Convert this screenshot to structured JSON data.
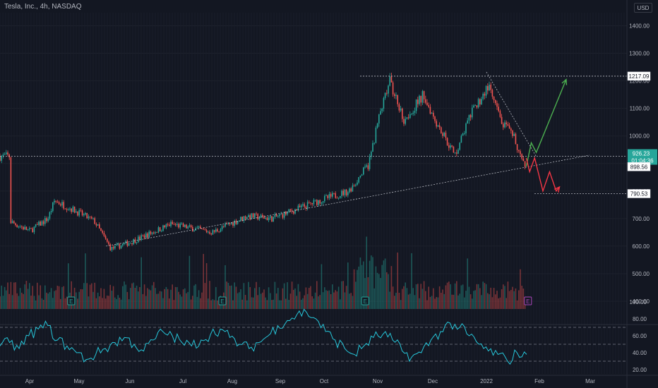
{
  "header": {
    "title": "Tesla, Inc., 4h, NASDAQ",
    "currency": "USD"
  },
  "colors": {
    "background": "#131722",
    "up": "#26a69a",
    "down": "#ef5350",
    "rsi": "#26c6da",
    "projection_up": "#4caf50",
    "projection_down": "#f23645",
    "guide": "#d1d4dc"
  },
  "chart_data": [
    {
      "type": "candlestick",
      "title": "Tesla, Inc., 4h, NASDAQ",
      "x_ticks": [
        "Apr",
        "May",
        "Jun",
        "Jul",
        "Aug",
        "Sep",
        "Oct",
        "Nov",
        "Dec",
        "2022",
        "Feb",
        "Mar"
      ],
      "y_ticks": [
        400,
        500,
        600,
        700,
        800,
        900,
        1000,
        1100,
        1200,
        1300,
        1400
      ],
      "y_tick_labels": [
        "400.00",
        "500.00",
        "600.00",
        "700.00",
        "800.00",
        "900.00",
        "1000.00",
        "1100.00",
        "1200.00",
        "1300.00",
        "1400.00"
      ],
      "ylim": [
        388,
        1475
      ],
      "price_path": [
        {
          "x": "Mar 20",
          "y": 690
        },
        {
          "x": "Apr 1",
          "y": 655
        },
        {
          "x": "Apr 12",
          "y": 700
        },
        {
          "x": "Apr 16",
          "y": 765
        },
        {
          "x": "Apr 28",
          "y": 730
        },
        {
          "x": "May 10",
          "y": 690
        },
        {
          "x": "May 20",
          "y": 590
        },
        {
          "x": "Jun 1",
          "y": 615
        },
        {
          "x": "Jun 25",
          "y": 680
        },
        {
          "x": "Jul 20",
          "y": 650
        },
        {
          "x": "Aug 10",
          "y": 710
        },
        {
          "x": "Aug 25",
          "y": 700
        },
        {
          "x": "Sep 20",
          "y": 760
        },
        {
          "x": "Oct 10",
          "y": 800
        },
        {
          "x": "Oct 22",
          "y": 895
        },
        {
          "x": "Oct 28",
          "y": 1060
        },
        {
          "x": "Nov 4",
          "y": 1200
        },
        {
          "x": "Nov 12",
          "y": 1060
        },
        {
          "x": "Nov 18",
          "y": 1100
        },
        {
          "x": "Nov 24",
          "y": 1150
        },
        {
          "x": "Dec 2",
          "y": 1050
        },
        {
          "x": "Dec 13",
          "y": 930
        },
        {
          "x": "Dec 22",
          "y": 1070
        },
        {
          "x": "Jan 2",
          "y": 1180
        },
        {
          "x": "Jan 10",
          "y": 1050
        },
        {
          "x": "Jan 18",
          "y": 990
        },
        {
          "x": "Jan 24",
          "y": 880
        },
        {
          "x": "Jan 25",
          "y": 926.23
        }
      ],
      "price_labels": [
        {
          "value": 1217.09,
          "label": "1217.09",
          "style": "resistance"
        },
        {
          "value": 926.23,
          "label": "926.23",
          "sublabel": "01:04:36",
          "style": "last"
        },
        {
          "value": 898.56,
          "label": "898.56",
          "style": "level"
        },
        {
          "value": 790.53,
          "label": "790.53",
          "style": "level"
        }
      ],
      "horizontal_lines": [
        1217.09,
        926.23,
        790.53
      ],
      "trendlines": [
        {
          "from": {
            "x": "May 17",
            "y": 600
          },
          "to": {
            "x": "Mar 4",
            "y": 930
          }
        },
        {
          "from": {
            "x": "Jan 1",
            "y": 1232
          },
          "to": {
            "x": "Jan 31",
            "y": 925
          }
        }
      ],
      "projections": [
        {
          "direction": "up",
          "points": [
            {
              "x": "Jan 25",
              "y": 890
            },
            {
              "x": "Jan 28",
              "y": 975
            },
            {
              "x": "Jan 31",
              "y": 940
            },
            {
              "x": "Feb 18",
              "y": 1205
            }
          ]
        },
        {
          "direction": "down",
          "points": [
            {
              "x": "Jan 25",
              "y": 920
            },
            {
              "x": "Jan 27",
              "y": 870
            },
            {
              "x": "Jan 30",
              "y": 920
            },
            {
              "x": "Feb 4",
              "y": 800
            },
            {
              "x": "Feb 8",
              "y": 870
            },
            {
              "x": "Feb 12",
              "y": 800
            },
            {
              "x": "Feb 14",
              "y": 815
            }
          ]
        }
      ],
      "volume": {
        "visible": true
      },
      "earnings_markers": [
        {
          "label": "E",
          "x": "Apr 26",
          "color": "#26a69a"
        },
        {
          "label": "E",
          "x": "Jul 26",
          "color": "#26a69a"
        },
        {
          "label": "E",
          "x": "Oct 20",
          "color": "#26a69a"
        },
        {
          "label": "E",
          "x": "Jan 26",
          "color": "#ab47bc"
        }
      ],
      "grid": true
    },
    {
      "type": "line",
      "series": [
        {
          "values": [
            48,
            52,
            45,
            60,
            68,
            72,
            55,
            48,
            40,
            32,
            38,
            45,
            52,
            58,
            50,
            42,
            55,
            65,
            60,
            52,
            48,
            55,
            62,
            68,
            58,
            50,
            45,
            52,
            60,
            72,
            78,
            85,
            88,
            80,
            65,
            55,
            45,
            38,
            48,
            58,
            62,
            55,
            42,
            35,
            40,
            55,
            65,
            75,
            70,
            60,
            50,
            42,
            38,
            30,
            40,
            38
          ]
        }
      ],
      "y_ticks": [
        20,
        40,
        60,
        80,
        100
      ],
      "y_tick_labels": [
        "20.00",
        "40.00",
        "60.00",
        "80.00",
        "100.00"
      ],
      "reference_lines": [
        30,
        50,
        70
      ],
      "ylim": [
        15,
        100
      ]
    }
  ]
}
